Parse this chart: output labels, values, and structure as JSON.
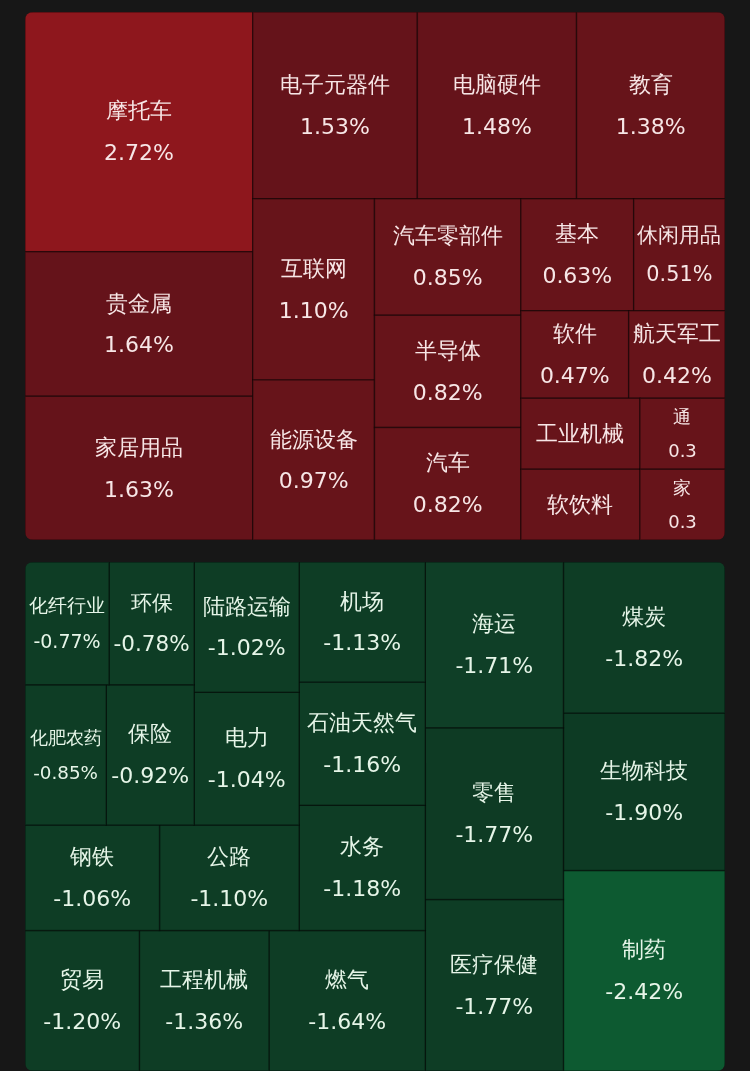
{
  "chart_data": [
    {
      "type": "other",
      "categories": [
        "摩托车",
        "贵金属",
        "家居用品",
        "电子元器件",
        "电脑硬件",
        "教育",
        "互联网",
        "能源设备",
        "汽车零部件",
        "半导体",
        "汽车",
        "基本",
        "休闲用品",
        "软件",
        "航天军工",
        "工业机械",
        "软饮料",
        "通",
        "家"
      ],
      "values": [
        2.72,
        1.64,
        1.63,
        1.53,
        1.48,
        1.38,
        1.1,
        0.97,
        0.85,
        0.82,
        0.82,
        0.63,
        0.51,
        0.47,
        0.42,
        null,
        null,
        0.3,
        0.3
      ],
      "value_labels": [
        "2.72%",
        "1.64%",
        "1.63%",
        "1.53%",
        "1.48%",
        "1.38%",
        "1.10%",
        "0.97%",
        "0.85%",
        "0.82%",
        "0.82%",
        "0.63%",
        "0.51%",
        "0.47%",
        "0.42%",
        null,
        null,
        "0.3",
        "0.3"
      ],
      "colors": [
        "#8e171d",
        "#65131a",
        "#65131a",
        "#65131a",
        "#65131a",
        "#67141a",
        "#67141a",
        "#67141a",
        "#67141a",
        "#67141a",
        "#67141a",
        "#67141a",
        "#67141a",
        "#67141a",
        "#67141a",
        "#67141a",
        "#67141a",
        "#67141a",
        "#67141a"
      ]
    },
    {
      "type": "other",
      "categories": [
        "制药",
        "生物科技",
        "煤炭",
        "医疗保健",
        "零售",
        "海运",
        "燃气",
        "工程机械",
        "贸易",
        "水务",
        "石油天然气",
        "机场",
        "公路",
        "钢铁",
        "电力",
        "陆路运输",
        "保险",
        "化肥农药",
        "环保",
        "化纤行业"
      ],
      "values": [
        -2.42,
        -1.9,
        -1.82,
        -1.77,
        -1.77,
        -1.71,
        -1.64,
        -1.36,
        -1.2,
        -1.18,
        -1.16,
        -1.13,
        -1.1,
        -1.06,
        -1.04,
        -1.02,
        -0.92,
        -0.85,
        -0.78,
        -0.77
      ],
      "value_labels": [
        "-2.42%",
        "-1.90%",
        "-1.82%",
        "-1.77%",
        "-1.77%",
        "-1.71%",
        "-1.64%",
        "-1.36%",
        "-1.20%",
        "-1.18%",
        "-1.16%",
        "-1.13%",
        "-1.10%",
        "-1.06%",
        "-1.04%",
        "-1.02%",
        "-0.92%",
        "-0.85%",
        "-0.78%",
        "-0.77%"
      ],
      "colors": [
        "#0d5a31",
        "#0d3b24",
        "#0e3d25",
        "#0e3d25",
        "#0e3b24",
        "#0f3f27",
        "#0e3d25",
        "#0e3d25",
        "#0e3d25",
        "#0e3d25",
        "#0e3d25",
        "#0e3d25",
        "#0e3d25",
        "#0e3d25",
        "#0e3d25",
        "#0e3d25",
        "#0e3d25",
        "#0e3d25",
        "#0e3d25",
        "#0e3d25"
      ]
    }
  ]
}
